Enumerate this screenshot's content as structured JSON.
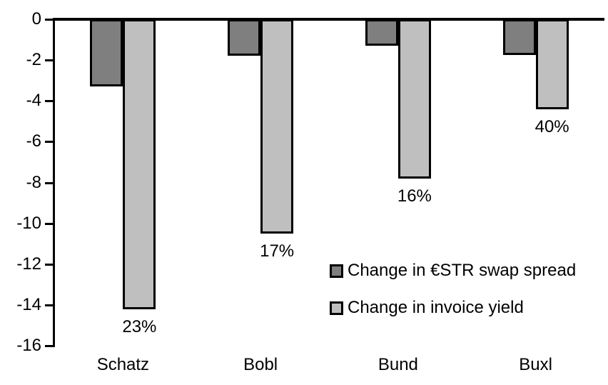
{
  "chart_data": {
    "type": "bar",
    "title": "",
    "xlabel": "",
    "ylabel": "",
    "categories": [
      "Schatz",
      "Bobl",
      "Bund",
      "Buxl"
    ],
    "series": [
      {
        "name": "Change in €STR swap spread",
        "color": "#7f7f7f",
        "values": [
          -3.3,
          -1.8,
          -1.3,
          -1.75
        ]
      },
      {
        "name": "Change in invoice yield",
        "color": "#bfbfbf",
        "values": [
          -14.2,
          -10.5,
          -7.8,
          -4.4
        ],
        "point_labels": [
          "23%",
          "17%",
          "16%",
          "40%"
        ]
      }
    ],
    "ylim": [
      -16,
      0
    ],
    "yticks": [
      0,
      -2,
      -4,
      -6,
      -8,
      -10,
      -12,
      -14,
      -16
    ],
    "grid": false,
    "bar_outline_color": "#000000",
    "axis_color": "#000000",
    "legend_position": "inside-right"
  }
}
